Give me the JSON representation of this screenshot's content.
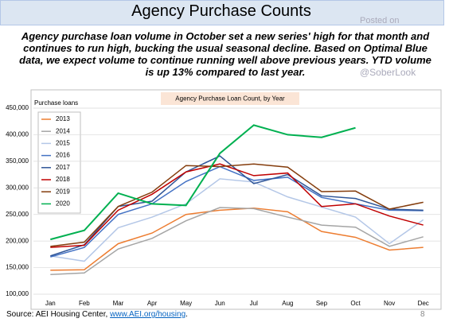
{
  "header": {
    "title": "Agency Purchase Counts"
  },
  "watermark": {
    "line1": "Posted on",
    "line2": "@SoberLook"
  },
  "description": "Agency purchase loan volume in October set a new series' high for that month and continues to run high, bucking the usual seasonal decline. Based on Optimal Blue data, we expect volume to continue running well above previous years. YTD volume is up 13% compared to last year.",
  "chart_data": {
    "type": "line",
    "title": "Agency Purchase Loan Count, by Year",
    "y_label": "Purchase loans",
    "categories": [
      "Jan",
      "Feb",
      "Mar",
      "Apr",
      "May",
      "Jun",
      "Jul",
      "Aug",
      "Sep",
      "Oct",
      "Nov",
      "Dec"
    ],
    "ylim": [
      100000,
      450000
    ],
    "yticks": [
      {
        "value": 100000,
        "label": "100,000"
      },
      {
        "value": 150000,
        "label": "150,000"
      },
      {
        "value": 200000,
        "label": "200,000"
      },
      {
        "value": 250000,
        "label": "250,000"
      },
      {
        "value": 300000,
        "label": "300,000"
      },
      {
        "value": 350000,
        "label": "350,000"
      },
      {
        "value": 400000,
        "label": "400,000"
      },
      {
        "value": 450000,
        "label": "450,000"
      }
    ],
    "grid": true,
    "legend": "top-left",
    "series": [
      {
        "name": "2013",
        "color": "#ed7d31",
        "values": [
          145000,
          146000,
          195000,
          215000,
          250000,
          258000,
          262000,
          255000,
          218000,
          207000,
          183000,
          188000
        ]
      },
      {
        "name": "2014",
        "color": "#a5a5a5",
        "values": [
          137000,
          140000,
          185000,
          205000,
          238000,
          263000,
          261000,
          245000,
          230000,
          226000,
          190000,
          208000
        ]
      },
      {
        "name": "2015",
        "color": "#b4c7e7",
        "values": [
          172000,
          162000,
          225000,
          245000,
          270000,
          317000,
          311000,
          283000,
          264000,
          245000,
          195000,
          240000
        ]
      },
      {
        "name": "2016",
        "color": "#4472c4",
        "values": [
          170000,
          188000,
          250000,
          270000,
          312000,
          340000,
          314000,
          320000,
          282000,
          270000,
          258000,
          257000
        ]
      },
      {
        "name": "2017",
        "color": "#2f5597",
        "values": [
          172000,
          193000,
          265000,
          275000,
          330000,
          360000,
          308000,
          325000,
          285000,
          280000,
          260000,
          258000
        ]
      },
      {
        "name": "2018",
        "color": "#c00000",
        "values": [
          188000,
          192000,
          258000,
          288000,
          330000,
          345000,
          323000,
          328000,
          265000,
          270000,
          247000,
          230000
        ]
      },
      {
        "name": "2019",
        "color": "#843c0c",
        "values": [
          190000,
          198000,
          265000,
          292000,
          342000,
          340000,
          345000,
          339000,
          293000,
          294000,
          260000,
          273000
        ]
      },
      {
        "name": "2020",
        "color": "#00b050",
        "values": [
          203000,
          220000,
          290000,
          270000,
          267000,
          365000,
          418000,
          400000,
          395000,
          413000,
          null,
          null
        ]
      }
    ]
  },
  "footer": {
    "source": "Source: AEI Housing Center, ",
    "link": "www.AEI.org/housing",
    "end": ".",
    "page": "8"
  }
}
